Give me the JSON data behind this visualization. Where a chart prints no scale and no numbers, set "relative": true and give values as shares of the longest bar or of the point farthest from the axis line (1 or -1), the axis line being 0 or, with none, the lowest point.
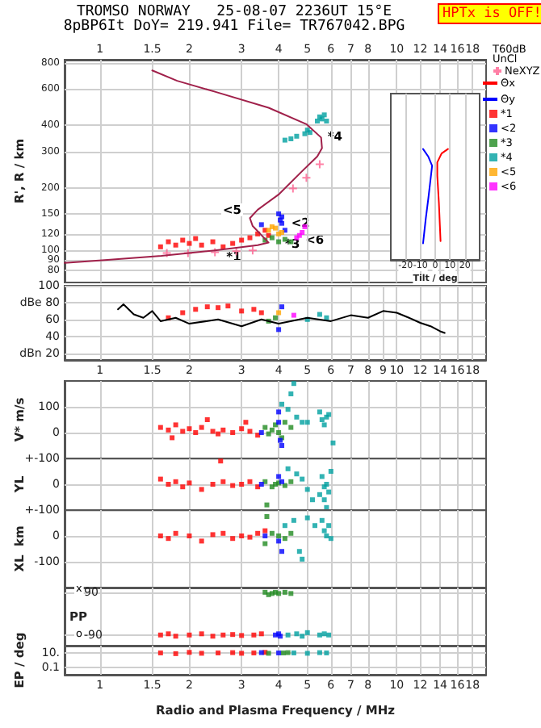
{
  "chart_data": [
    {
      "type": "scatter",
      "title": "TROMSO NORWAY   25-08-07 2236UT 15°E",
      "subtitle": "8pBP6It DoY= 219.941 File= TR767042.BPG",
      "ylabel": "R', R / km",
      "log": "xy",
      "xlim": [
        0.76,
        20
      ],
      "xticks": [
        1,
        1.5,
        2,
        3,
        4,
        5,
        6,
        7,
        8,
        10,
        12,
        14,
        16,
        18
      ],
      "ylim": [
        70,
        830
      ],
      "yticks": [
        80,
        90,
        100,
        120,
        150,
        200,
        300,
        400,
        600,
        800
      ],
      "grid": true,
      "legend": "right",
      "marker": "square",
      "line_style": "solid",
      "annotations": [
        "HPTx is OFF!",
        "T60dB",
        "UnCl",
        {
          "text": "*1",
          "x": 2.6,
          "y": 93
        },
        {
          "text": "*4",
          "x": 5.7,
          "y": 355
        },
        {
          "text": "<2",
          "x": 4.3,
          "y": 136
        },
        "<5",
        {
          "text": "*3",
          "x": 4.1,
          "y": 108
        },
        {
          "text": "<6",
          "x": 4.8,
          "y": 113
        }
      ],
      "series": [
        {
          "type": "line",
          "marker": "none",
          "color": "#a0204a",
          "x": [
            0.76,
            1.06,
            1.61,
            2.44,
            3.4,
            3.7,
            3.27,
            3.2,
            3.4,
            4.02,
            4.76,
            5.4,
            5.6,
            5.56,
            4.96,
            3.7,
            2.44,
            1.82,
            1.5
          ],
          "values": [
            87,
            90,
            94,
            100,
            106,
            109,
            131,
            143,
            157,
            187,
            238,
            284,
            311,
            350,
            406,
            487,
            582,
            657,
            737
          ]
        },
        {
          "name": "NeXYZ",
          "marker": "cross",
          "color": "#ff6090",
          "x": [
            1.68,
            1.98,
            2.44,
            2.88,
            3.27,
            4.47,
            4.96,
            5.5
          ],
          "values": [
            97,
            97,
            98,
            99,
            100,
            199,
            224,
            260
          ]
        },
        {
          "name": "*1",
          "color": "#ff0000",
          "x": [
            1.6,
            1.7,
            1.8,
            1.9,
            2.0,
            2.1,
            2.2,
            2.4,
            2.6,
            2.8,
            3.0,
            3.2,
            3.4,
            3.6,
            3.7
          ],
          "values": [
            104,
            110,
            106,
            112,
            108,
            114,
            106,
            110,
            104,
            108,
            112,
            115,
            120,
            125,
            118
          ]
        },
        {
          "name": "<2",
          "color": "#0000ff",
          "x": [
            4.0,
            4.1,
            4.05,
            3.5,
            4.2,
            4.1
          ],
          "values": [
            150,
            145,
            140,
            133,
            125,
            135
          ]
        },
        {
          "name": "*3",
          "color": "#228b22",
          "x": [
            3.6,
            3.8,
            4.0,
            4.2,
            4.4
          ],
          "values": [
            112,
            115,
            110,
            113,
            110
          ]
        },
        {
          "name": "*4",
          "color": "#00a0a0",
          "x": [
            4.2,
            4.4,
            4.6,
            4.9,
            5.1,
            5.4,
            5.5,
            5.6,
            5.7,
            5.8,
            5.0
          ],
          "values": [
            340,
            345,
            355,
            365,
            370,
            420,
            440,
            430,
            450,
            420,
            380
          ]
        },
        {
          "name": "<5",
          "color": "#ffa500",
          "x": [
            3.7,
            3.8,
            3.9,
            4.0,
            4.1
          ],
          "values": [
            125,
            130,
            128,
            120,
            122
          ]
        },
        {
          "name": "<6",
          "color": "#ff00ff",
          "x": [
            4.6,
            4.7,
            4.8,
            4.9
          ],
          "values": [
            115,
            118,
            122,
            130
          ]
        }
      ]
    },
    {
      "type": "line",
      "xlabel": "Tilt / deg",
      "relative": true,
      "xlim": [
        -30,
        30
      ],
      "xticks": [
        -20,
        -10,
        0,
        10,
        20
      ],
      "grid": "x",
      "legend": "top right",
      "marker": "none",
      "line_style": "solid",
      "series": [
        {
          "name": "Θx",
          "color": "#ff0000",
          "x": [
            8.6,
            4.3,
            1.4,
            1.4,
            2.5,
            3.6
          ],
          "values": [
            1,
            0.96,
            0.88,
            0.76,
            0.51,
            0.17
          ]
        },
        {
          "name": "Θy",
          "color": "#0000ff",
          "x": [
            -8.2,
            -4.6,
            -2.1,
            -4.6,
            -6.4,
            -8.2
          ],
          "values": [
            1,
            0.93,
            0.85,
            0.56,
            0.37,
            0.15
          ]
        }
      ]
    },
    {
      "type": "scatter",
      "log": "x",
      "xlim": [
        0.76,
        20
      ],
      "xticks": [
        1,
        1.5,
        2,
        3,
        4,
        5,
        6,
        7,
        8,
        9,
        10,
        12,
        14,
        16,
        18
      ],
      "ylim": [
        12,
        100
      ],
      "yticks": [
        {
          "value": 20,
          "label": "dBn 20"
        },
        40,
        60,
        {
          "value": 80,
          "label": "dBe 80"
        },
        100
      ],
      "grid": true,
      "marker": "square",
      "line_style": "solid",
      "series": [
        {
          "type": "line",
          "marker": "none",
          "color": "#000000",
          "x": [
            1.15,
            1.2,
            1.3,
            1.4,
            1.5,
            1.6,
            1.8,
            2.0,
            2.5,
            3.0,
            3.5,
            4,
            5,
            6,
            7,
            8,
            9,
            10,
            11,
            12,
            13,
            14,
            14.5
          ],
          "values": [
            72,
            78,
            66,
            62,
            70,
            58,
            62,
            55,
            60,
            52,
            60,
            55,
            62,
            58,
            65,
            62,
            70,
            68,
            62,
            56,
            52,
            46,
            44
          ]
        },
        {
          "color": "#ff0000",
          "x": [
            1.7,
            1.9,
            2.1,
            2.3,
            2.5,
            2.7,
            3.0,
            3.3,
            3.5
          ],
          "values": [
            62,
            68,
            72,
            75,
            74,
            76,
            70,
            72,
            68
          ]
        },
        {
          "color": "#0000ff",
          "x": [
            4.0,
            4.1
          ],
          "values": [
            48,
            75
          ]
        },
        {
          "color": "#228b22",
          "x": [
            3.7,
            3.9
          ],
          "values": [
            58,
            62
          ]
        },
        {
          "color": "#00a0a0",
          "x": [
            5.0,
            5.5,
            5.8
          ],
          "values": [
            60,
            66,
            62
          ]
        },
        {
          "color": "#ffa500",
          "x": [
            4.0
          ],
          "values": [
            68
          ]
        },
        {
          "color": "#ff00ff",
          "x": [
            4.5
          ],
          "values": [
            65
          ]
        }
      ]
    },
    {
      "type": "scatter",
      "ylabel": "V* m/s",
      "log": "x",
      "xlim": [
        0.76,
        20
      ],
      "xticks": [
        1,
        1.5,
        2,
        3,
        4,
        5,
        6,
        7,
        8,
        10,
        12,
        14,
        16,
        18
      ],
      "ylim": [
        -100,
        200
      ],
      "yticks": [
        {
          "value": -100,
          "label": "+-100"
        },
        0,
        100
      ],
      "grid": true,
      "tick_labels": "y",
      "marker": "square",
      "series": [
        {
          "color": "#ff0000",
          "x": [
            1.6,
            1.7,
            1.75,
            1.8,
            1.9,
            2.0,
            2.1,
            2.2,
            2.4,
            2.5,
            2.6,
            2.8,
            3.0,
            3.1,
            3.2,
            3.4,
            2.3
          ],
          "values": [
            20,
            10,
            -20,
            30,
            5,
            15,
            0,
            20,
            5,
            -5,
            10,
            0,
            15,
            40,
            5,
            -10,
            50
          ]
        },
        {
          "color": "#228b22",
          "x": [
            3.6,
            3.7,
            3.8,
            3.9,
            4.0,
            4.2,
            4.4,
            4.1
          ],
          "values": [
            20,
            -5,
            10,
            30,
            0,
            40,
            20,
            -20
          ]
        },
        {
          "color": "#0000ff",
          "x": [
            3.5,
            4.0,
            4.05,
            4.1,
            4.0
          ],
          "values": [
            0,
            80,
            -30,
            -50,
            40
          ]
        },
        {
          "color": "#00a0a0",
          "x": [
            4.1,
            4.3,
            4.5,
            4.6,
            4.8,
            5.0,
            5.5,
            5.6,
            5.7,
            5.8,
            5.9,
            6.1,
            4.4
          ],
          "values": [
            110,
            90,
            190,
            60,
            40,
            40,
            80,
            50,
            30,
            60,
            70,
            -40,
            150
          ]
        }
      ]
    },
    {
      "type": "scatter",
      "ylabel": "YL",
      "log": "x",
      "xlim": [
        0.76,
        20
      ],
      "xticks": [
        1,
        1.5,
        2,
        3,
        4,
        5,
        6,
        7,
        8,
        10,
        12,
        14,
        16,
        18
      ],
      "ylim": [
        -100,
        100
      ],
      "yticks": [
        {
          "value": -100,
          "label": "+-100"
        },
        0
      ],
      "grid": true,
      "tick_labels": "y",
      "marker": "square",
      "series": [
        {
          "color": "#ff0000",
          "x": [
            1.6,
            1.7,
            1.8,
            1.9,
            2.0,
            2.2,
            2.4,
            2.6,
            2.8,
            3.0,
            3.2,
            3.4,
            2.55
          ],
          "values": [
            20,
            0,
            10,
            -10,
            5,
            -20,
            0,
            10,
            -5,
            0,
            10,
            -10,
            90
          ]
        },
        {
          "color": "#228b22",
          "x": [
            3.6,
            3.8,
            3.9,
            4.0,
            4.2,
            4.4,
            3.65
          ],
          "values": [
            10,
            -10,
            0,
            5,
            -5,
            10,
            -80
          ]
        },
        {
          "color": "#0000ff",
          "x": [
            3.5,
            4.0,
            4.1
          ],
          "values": [
            0,
            30,
            10
          ]
        },
        {
          "color": "#00a0a0",
          "x": [
            4.3,
            4.6,
            4.8,
            5.0,
            5.2,
            5.5,
            5.6,
            5.7,
            5.7,
            5.8,
            5.9,
            5.8,
            6.0
          ],
          "values": [
            60,
            40,
            20,
            -20,
            -60,
            -40,
            30,
            -10,
            -60,
            -90,
            -30,
            0,
            50
          ]
        }
      ]
    },
    {
      "type": "scatter",
      "ylabel": "XL  km",
      "log": "x",
      "xlim": [
        0.76,
        20
      ],
      "xticks": [
        1,
        1.5,
        2,
        3,
        4,
        5,
        6,
        7,
        8,
        10,
        12,
        14,
        16,
        18
      ],
      "ylim": [
        -200,
        100
      ],
      "yticks": [
        -100,
        0
      ],
      "grid": true,
      "tick_labels": "y",
      "marker": "square",
      "series": [
        {
          "color": "#ff0000",
          "x": [
            1.6,
            1.7,
            1.8,
            2.0,
            2.2,
            2.4,
            2.6,
            2.8,
            3.0,
            3.2,
            3.4,
            3.6
          ],
          "values": [
            0,
            -10,
            10,
            0,
            -20,
            5,
            10,
            -10,
            0,
            -5,
            10,
            20
          ]
        },
        {
          "color": "#228b22",
          "x": [
            3.65,
            3.8,
            4.0,
            4.2,
            4.4,
            3.6
          ],
          "values": [
            75,
            10,
            0,
            -10,
            10,
            -30
          ]
        },
        {
          "color": "#0000ff",
          "x": [
            3.6,
            4.0,
            4.1
          ],
          "values": [
            0,
            -20,
            -60
          ]
        },
        {
          "color": "#00a0a0",
          "x": [
            4.2,
            4.5,
            4.7,
            4.8,
            5.0,
            5.3,
            5.6,
            5.7,
            5.8,
            5.9,
            6.0
          ],
          "values": [
            40,
            60,
            -60,
            -90,
            70,
            40,
            60,
            20,
            0,
            40,
            -10
          ]
        }
      ]
    },
    {
      "type": "scatter",
      "ylabel": "PP",
      "log": "x",
      "xlim": [
        0.76,
        20
      ],
      "xticks": [
        1,
        1.5,
        2,
        3,
        4,
        5,
        6,
        7,
        8,
        10,
        12,
        14,
        16,
        18
      ],
      "ylim": [
        -135,
        110
      ],
      "yticks": [
        -90,
        90
      ],
      "annotations": [
        "x",
        "o"
      ],
      "grid": true,
      "tick_labels": "y",
      "marker": "square",
      "series": [
        {
          "color": "#228b22",
          "x": [
            3.6,
            3.7,
            3.8,
            3.9,
            4.0,
            4.2,
            4.4
          ],
          "values": [
            90,
            80,
            85,
            90,
            85,
            90,
            85
          ]
        },
        {
          "color": "#ff0000",
          "x": [
            1.6,
            1.7,
            1.8,
            2.0,
            2.2,
            2.4,
            2.6,
            2.8,
            3.0,
            3.3,
            3.5
          ],
          "values": [
            -90,
            -85,
            -95,
            -90,
            -85,
            -95,
            -90,
            -88,
            -92,
            -90,
            -85
          ]
        },
        {
          "color": "#0000ff",
          "x": [
            3.9,
            4.0,
            4.05
          ],
          "values": [
            -90,
            -85,
            -95
          ]
        },
        {
          "color": "#00a0a0",
          "x": [
            4.3,
            4.6,
            4.8,
            5.0,
            5.5,
            5.7,
            5.9
          ],
          "values": [
            -90,
            -85,
            -95,
            -80,
            -90,
            -85,
            -90
          ]
        }
      ]
    },
    {
      "type": "scatter",
      "xlabel": "Radio and Plasma Frequency / MHz",
      "ylabel": "EP / deg",
      "log": "xy",
      "xlim": [
        0.76,
        20
      ],
      "xticks": [
        1,
        1.5,
        2,
        3,
        4,
        5,
        6,
        7,
        8,
        10,
        12,
        14,
        16,
        18
      ],
      "ylim": [
        0.01,
        100
      ],
      "yticks": [
        0.1,
        {
          "value": 10,
          "label": "10."
        }
      ],
      "grid": true,
      "marker": "square",
      "series": [
        {
          "color": "#ff0000",
          "x": [
            1.6,
            1.8,
            2.0,
            2.2,
            2.5,
            2.8,
            3.0,
            3.3,
            3.6
          ],
          "values": [
            10,
            8,
            12,
            9,
            10,
            11,
            9,
            10,
            12
          ]
        },
        {
          "color": "#228b22",
          "x": [
            3.7,
            4.15,
            4.3
          ],
          "values": [
            9,
            10,
            11
          ]
        },
        {
          "color": "#0000ff",
          "x": [
            4.0,
            3.5
          ],
          "values": [
            10,
            11
          ]
        },
        {
          "color": "#00a0a0",
          "x": [
            4.5,
            5.0,
            5.5,
            5.8
          ],
          "values": [
            10,
            9,
            11,
            10
          ]
        }
      ]
    }
  ]
}
